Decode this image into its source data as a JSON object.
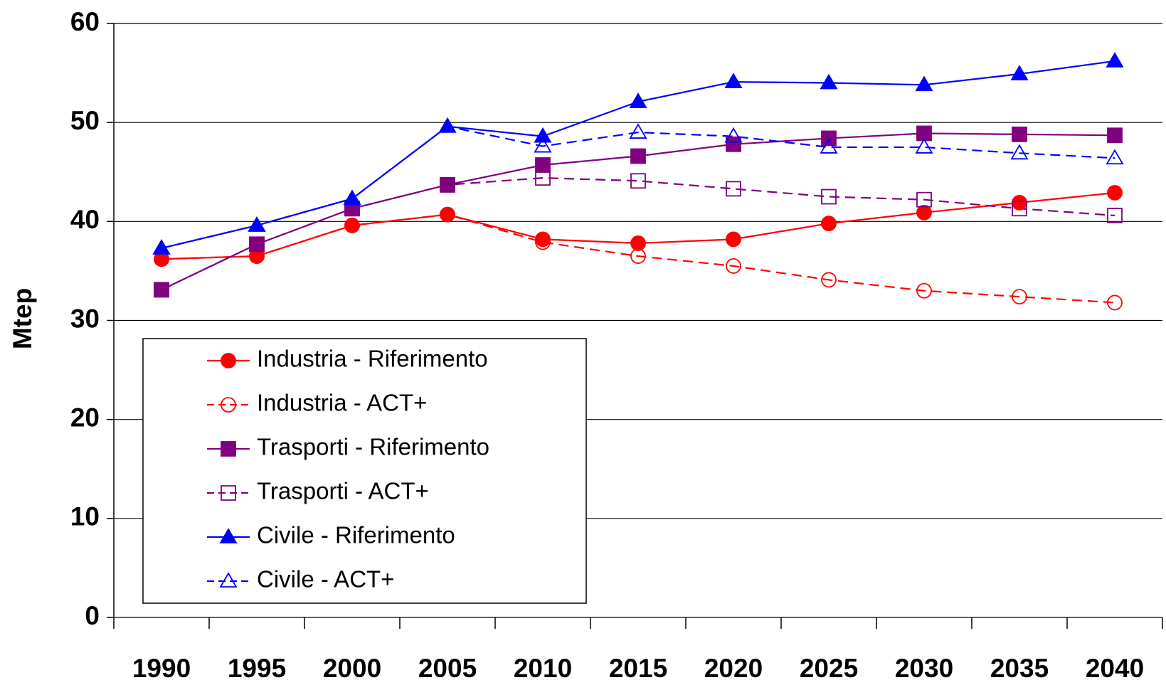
{
  "chart_data": {
    "type": "line",
    "y_label": "Mtep",
    "categories": [
      "1990",
      "1995",
      "2000",
      "2005",
      "2010",
      "2015",
      "2020",
      "2025",
      "2030",
      "2035",
      "2040"
    ],
    "ylim": [
      0,
      60
    ],
    "yticks": [
      0,
      10,
      20,
      30,
      40,
      50,
      60
    ],
    "grid": true,
    "legend": "lower left",
    "series": [
      {
        "name": "Industria - Riferimento",
        "color": "#ff0000",
        "marker": "circle",
        "filled": true,
        "dashed": false,
        "values": [
          36.2,
          36.5,
          39.6,
          40.7,
          38.2,
          37.8,
          38.2,
          39.8,
          40.9,
          41.9,
          42.9
        ]
      },
      {
        "name": "Industria - ACT+",
        "color": "#ff0000",
        "marker": "circle",
        "filled": false,
        "dashed": true,
        "values": [
          36.2,
          36.5,
          39.6,
          40.7,
          37.9,
          36.5,
          35.5,
          34.1,
          33.0,
          32.4,
          31.8
        ]
      },
      {
        "name": "Trasporti - Riferimento",
        "color": "#800080",
        "marker": "square",
        "filled": true,
        "dashed": false,
        "values": [
          33.1,
          37.7,
          41.3,
          43.7,
          45.7,
          46.6,
          47.8,
          48.4,
          48.9,
          48.8,
          48.7
        ]
      },
      {
        "name": "Trasporti - ACT+",
        "color": "#800080",
        "marker": "square",
        "filled": false,
        "dashed": true,
        "values": [
          33.1,
          37.7,
          41.3,
          43.7,
          44.4,
          44.1,
          43.3,
          42.5,
          42.2,
          41.3,
          40.6
        ]
      },
      {
        "name": "Civile - Riferimento",
        "color": "#0000ff",
        "marker": "triangle",
        "filled": true,
        "dashed": false,
        "values": [
          37.3,
          39.6,
          42.3,
          49.6,
          48.6,
          52.1,
          54.1,
          54.0,
          53.8,
          54.9,
          56.2
        ]
      },
      {
        "name": "Civile - ACT+",
        "color": "#0000ff",
        "marker": "triangle",
        "filled": false,
        "dashed": true,
        "values": [
          37.3,
          39.6,
          42.3,
          49.6,
          47.6,
          49.0,
          48.6,
          47.5,
          47.5,
          46.9,
          46.4
        ]
      }
    ]
  }
}
